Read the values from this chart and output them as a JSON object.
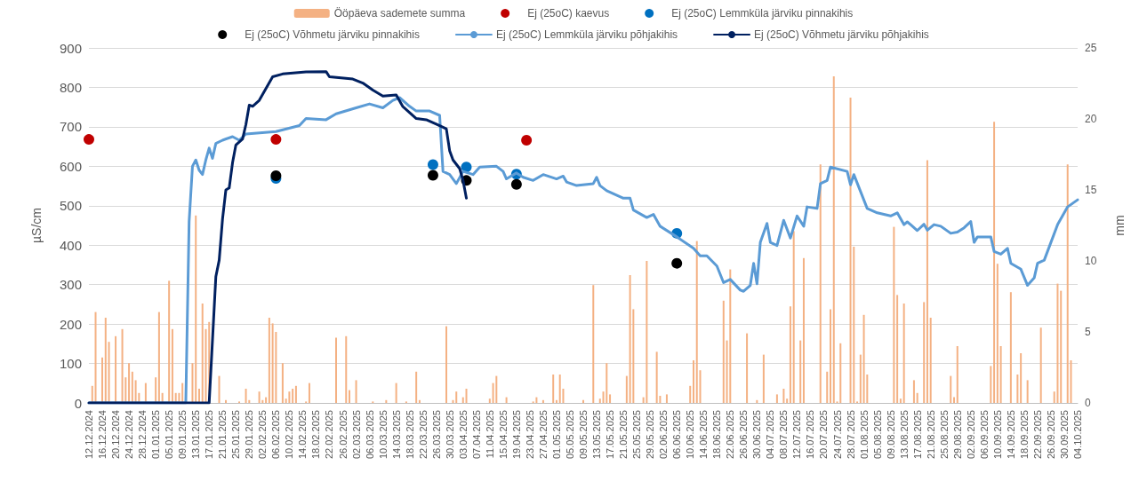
{
  "chart_data": {
    "type": "line",
    "ylabel": "µS/cm",
    "y2label": "mm",
    "xlim": [
      "2024-12-12",
      "2025-10-04"
    ],
    "ylim": [
      0,
      900
    ],
    "yticks": [
      0,
      100,
      200,
      300,
      400,
      500,
      600,
      700,
      800,
      900
    ],
    "y2lim": [
      0,
      25
    ],
    "y2ticks": [
      0,
      5,
      10,
      15,
      20,
      25
    ],
    "xticks": [
      {
        "value": "2024-12-12",
        "label": "12.12.2024"
      },
      {
        "value": "2024-12-16",
        "label": "16.12.2024"
      },
      {
        "value": "2024-12-20",
        "label": "20.12.2024"
      },
      {
        "value": "2024-12-24",
        "label": "24.12.2024"
      },
      {
        "value": "2024-12-28",
        "label": "28.12.2024"
      },
      {
        "value": "2025-01-01",
        "label": "01.01.2025"
      },
      {
        "value": "2025-01-05",
        "label": "05.01.2025"
      },
      {
        "value": "2025-01-09",
        "label": "09.01.2025"
      },
      {
        "value": "2025-01-13",
        "label": "13.01.2025"
      },
      {
        "value": "2025-01-17",
        "label": "17.01.2025"
      },
      {
        "value": "2025-01-21",
        "label": "21.01.2025"
      },
      {
        "value": "2025-01-25",
        "label": "25.01.2025"
      },
      {
        "value": "2025-01-29",
        "label": "29.01.2025"
      },
      {
        "value": "2025-02-02",
        "label": "02.02.2025"
      },
      {
        "value": "2025-02-06",
        "label": "06.02.2025"
      },
      {
        "value": "2025-02-10",
        "label": "10.02.2025"
      },
      {
        "value": "2025-02-14",
        "label": "14.02.2025"
      },
      {
        "value": "2025-02-18",
        "label": "18.02.2025"
      },
      {
        "value": "2025-02-22",
        "label": "22.02.2025"
      },
      {
        "value": "2025-02-26",
        "label": "26.02.2025"
      },
      {
        "value": "2025-03-02",
        "label": "02.03.2025"
      },
      {
        "value": "2025-03-06",
        "label": "06.03.2025"
      },
      {
        "value": "2025-03-10",
        "label": "10.03.2025"
      },
      {
        "value": "2025-03-14",
        "label": "14.03.2025"
      },
      {
        "value": "2025-03-18",
        "label": "18.03.2025"
      },
      {
        "value": "2025-03-22",
        "label": "22.03.2025"
      },
      {
        "value": "2025-03-26",
        "label": "26.03.2025"
      },
      {
        "value": "2025-03-30",
        "label": "30.03.2025"
      },
      {
        "value": "2025-04-03",
        "label": "03.04.2025"
      },
      {
        "value": "2025-04-07",
        "label": "07.04.2025"
      },
      {
        "value": "2025-04-11",
        "label": "11.04.2025"
      },
      {
        "value": "2025-04-15",
        "label": "15.04.2025"
      },
      {
        "value": "2025-04-19",
        "label": "19.04.2025"
      },
      {
        "value": "2025-04-23",
        "label": "23.04.2025"
      },
      {
        "value": "2025-04-27",
        "label": "27.04.2025"
      },
      {
        "value": "2025-05-01",
        "label": "01.05.2025"
      },
      {
        "value": "2025-05-05",
        "label": "05.05.2025"
      },
      {
        "value": "2025-05-09",
        "label": "09.05.2025"
      },
      {
        "value": "2025-05-13",
        "label": "13.05.2025"
      },
      {
        "value": "2025-05-17",
        "label": "17.05.2025"
      },
      {
        "value": "2025-05-21",
        "label": "21.05.2025"
      },
      {
        "value": "2025-05-25",
        "label": "25.05.2025"
      },
      {
        "value": "2025-05-29",
        "label": "29.05.2025"
      },
      {
        "value": "2025-06-02",
        "label": "02.06.2025"
      },
      {
        "value": "2025-06-06",
        "label": "06.06.2025"
      },
      {
        "value": "2025-06-10",
        "label": "10.06.2025"
      },
      {
        "value": "2025-06-14",
        "label": "14.06.2025"
      },
      {
        "value": "2025-06-18",
        "label": "18.06.2025"
      },
      {
        "value": "2025-06-22",
        "label": "22.06.2025"
      },
      {
        "value": "2025-06-26",
        "label": "26.06.2025"
      },
      {
        "value": "2025-06-30",
        "label": "30.06.2025"
      },
      {
        "value": "2025-07-04",
        "label": "04.07.2025"
      },
      {
        "value": "2025-07-08",
        "label": "08.07.2025"
      },
      {
        "value": "2025-07-12",
        "label": "12.07.2025"
      },
      {
        "value": "2025-07-16",
        "label": "16.07.2025"
      },
      {
        "value": "2025-07-20",
        "label": "20.07.2025"
      },
      {
        "value": "2025-07-24",
        "label": "24.07.2025"
      },
      {
        "value": "2025-07-28",
        "label": "28.07.2025"
      },
      {
        "value": "2025-08-01",
        "label": "01.08.2025"
      },
      {
        "value": "2025-08-05",
        "label": "05.08.2025"
      },
      {
        "value": "2025-08-09",
        "label": "09.08.2025"
      },
      {
        "value": "2025-08-13",
        "label": "13.08.2025"
      },
      {
        "value": "2025-08-17",
        "label": "17.08.2025"
      },
      {
        "value": "2025-08-21",
        "label": "21.08.2025"
      },
      {
        "value": "2025-08-25",
        "label": "25.08.2025"
      },
      {
        "value": "2025-08-29",
        "label": "29.08.2025"
      },
      {
        "value": "2025-09-02",
        "label": "02.09.2025"
      },
      {
        "value": "2025-09-06",
        "label": "06.09.2025"
      },
      {
        "value": "2025-09-10",
        "label": "10.09.2025"
      },
      {
        "value": "2025-09-14",
        "label": "14.09.2025"
      },
      {
        "value": "2025-09-18",
        "label": "18.09.2025"
      },
      {
        "value": "2025-09-22",
        "label": "22.09.2025"
      },
      {
        "value": "2025-09-26",
        "label": "26.09.2025"
      },
      {
        "value": "2025-09-30",
        "label": "30.09.2025"
      },
      {
        "value": "2025-10-04",
        "label": "04.10.2025"
      }
    ],
    "grid": "y",
    "legend": "top",
    "series": [
      {
        "name": "Ööpäeva sademete summa",
        "type": "bar",
        "axis": "y2",
        "color": "#f4b183",
        "x": [
          "2024-12-13",
          "2024-12-14",
          "2024-12-16",
          "2024-12-17",
          "2024-12-18",
          "2024-12-20",
          "2024-12-22",
          "2024-12-23",
          "2024-12-24",
          "2024-12-25",
          "2024-12-26",
          "2024-12-27",
          "2024-12-29",
          "2024-12-31",
          "2025-01-01",
          "2025-01-02",
          "2025-01-03",
          "2025-01-05",
          "2025-01-06",
          "2025-01-07",
          "2025-01-08",
          "2025-01-09",
          "2025-01-12",
          "2025-01-13",
          "2025-01-14",
          "2025-01-15",
          "2025-01-16",
          "2025-01-17",
          "2025-01-20",
          "2025-01-22",
          "2025-01-26",
          "2025-01-28",
          "2025-01-29",
          "2025-02-01",
          "2025-02-02",
          "2025-02-03",
          "2025-02-04",
          "2025-02-05",
          "2025-02-06",
          "2025-02-08",
          "2025-02-09",
          "2025-02-10",
          "2025-02-11",
          "2025-02-12",
          "2025-02-15",
          "2025-02-16",
          "2025-02-24",
          "2025-02-27",
          "2025-02-28",
          "2025-03-02",
          "2025-03-07",
          "2025-03-11",
          "2025-03-14",
          "2025-03-17",
          "2025-03-20",
          "2025-03-21",
          "2025-03-29",
          "2025-03-31",
          "2025-04-01",
          "2025-04-03",
          "2025-04-04",
          "2025-04-11",
          "2025-04-12",
          "2025-04-13",
          "2025-04-16",
          "2025-04-24",
          "2025-04-25",
          "2025-04-27",
          "2025-04-30",
          "2025-05-01",
          "2025-05-02",
          "2025-05-03",
          "2025-05-09",
          "2025-05-12",
          "2025-05-14",
          "2025-05-15",
          "2025-05-16",
          "2025-05-17",
          "2025-05-22",
          "2025-05-23",
          "2025-05-24",
          "2025-05-27",
          "2025-05-28",
          "2025-05-31",
          "2025-06-01",
          "2025-06-03",
          "2025-06-10",
          "2025-06-11",
          "2025-06-12",
          "2025-06-13",
          "2025-06-20",
          "2025-06-21",
          "2025-06-22",
          "2025-06-27",
          "2025-06-30",
          "2025-07-02",
          "2025-07-06",
          "2025-07-08",
          "2025-07-09",
          "2025-07-10",
          "2025-07-11",
          "2025-07-13",
          "2025-07-14",
          "2025-07-19",
          "2025-07-21",
          "2025-07-22",
          "2025-07-23",
          "2025-07-24",
          "2025-07-25",
          "2025-07-28",
          "2025-07-29",
          "2025-07-30",
          "2025-07-31",
          "2025-08-01",
          "2025-08-02",
          "2025-08-10",
          "2025-08-11",
          "2025-08-12",
          "2025-08-13",
          "2025-08-16",
          "2025-08-17",
          "2025-08-19",
          "2025-08-20",
          "2025-08-21",
          "2025-08-27",
          "2025-08-28",
          "2025-08-29",
          "2025-09-08",
          "2025-09-09",
          "2025-09-10",
          "2025-09-11",
          "2025-09-14",
          "2025-09-16",
          "2025-09-17",
          "2025-09-19",
          "2025-09-23",
          "2025-09-27",
          "2025-09-28",
          "2025-09-29",
          "2025-10-01",
          "2025-10-02"
        ],
        "values": [
          1.2,
          6.4,
          3.2,
          6.0,
          4.3,
          4.7,
          5.2,
          1.8,
          2.8,
          2.2,
          1.6,
          0.7,
          1.4,
          null,
          1.8,
          6.4,
          0.7,
          8.6,
          5.2,
          0.7,
          0.7,
          1.4,
          2.8,
          13.2,
          1.0,
          7.0,
          5.2,
          5.7,
          1.9,
          0.2,
          0.1,
          1.0,
          0.2,
          0.8,
          0.2,
          0.4,
          6.0,
          5.6,
          5.0,
          2.8,
          0.3,
          0.8,
          1.0,
          1.2,
          0.1,
          1.4,
          4.6,
          4.7,
          0.9,
          1.6,
          0.1,
          0.2,
          1.4,
          0.1,
          2.2,
          0.2,
          5.4,
          0.2,
          0.8,
          0.4,
          1.0,
          0.3,
          1.4,
          1.9,
          0.4,
          0.1,
          0.4,
          0.2,
          2.0,
          0.2,
          2.0,
          1.0,
          0.2,
          8.3,
          0.3,
          0.8,
          2.8,
          0.6,
          1.9,
          9.0,
          6.6,
          0.4,
          10.0,
          3.6,
          0.5,
          0.6,
          1.2,
          3.0,
          11.4,
          2.3,
          7.2,
          4.4,
          9.4,
          4.9,
          0.2,
          3.4,
          0.6,
          1.0,
          0.3,
          6.8,
          12.1,
          4.4,
          10.2,
          16.8,
          2.2,
          6.6,
          23.0,
          0.1,
          4.2,
          21.5,
          11.0,
          0.1,
          3.4,
          6.2,
          2.0,
          12.4,
          7.6,
          0.3,
          7.0,
          1.6,
          0.7,
          7.1,
          17.1,
          6.0,
          1.9,
          0.4,
          4.0,
          2.6,
          19.8,
          9.8,
          4.0,
          7.8,
          2.0,
          3.5,
          1.6,
          5.3,
          0.8,
          8.4,
          7.9,
          16.8,
          3.0
        ]
      },
      {
        "name": "Ej (25oC) kaevus",
        "type": "scatter",
        "marker": "circle",
        "color": "#c00000",
        "x": [
          "2024-12-12",
          "2025-02-06",
          "2025-04-22"
        ],
        "values": [
          668,
          668,
          666
        ]
      },
      {
        "name": "Ej (25oC) Lemmküla järviku pinnakihis",
        "type": "scatter",
        "marker": "circle",
        "color": "#0070c0",
        "x": [
          "2025-02-06",
          "2025-03-25",
          "2025-04-04",
          "2025-04-19",
          "2025-06-06"
        ],
        "values": [
          569,
          604,
          598,
          580,
          430
        ]
      },
      {
        "name": "Ej (25oC) Võhmetu järviku pinnakihis",
        "type": "scatter",
        "marker": "circle",
        "color": "#000000",
        "x": [
          "2025-02-06",
          "2025-03-25",
          "2025-04-04",
          "2025-04-19",
          "2025-06-06"
        ],
        "values": [
          576,
          577,
          564,
          554,
          354
        ]
      },
      {
        "name": "Ej (25oC) Lemmküla järviku põhjakihis",
        "marker": "none",
        "line_style": "solid",
        "color": "#5b9bd5",
        "x": [
          "2024-12-12",
          "2025-01-10",
          "2025-01-11",
          "2025-01-12",
          "2025-01-13",
          "2025-01-14",
          "2025-01-15",
          "2025-01-16",
          "2025-01-17",
          "2025-01-18",
          "2025-01-19",
          "2025-01-21",
          "2025-01-24",
          "2025-01-26",
          "2025-01-28",
          "2025-02-06",
          "2025-02-13",
          "2025-02-15",
          "2025-02-21",
          "2025-02-24",
          "2025-03-02",
          "2025-03-06",
          "2025-03-10",
          "2025-03-13",
          "2025-03-15",
          "2025-03-18",
          "2025-03-20",
          "2025-03-24",
          "2025-03-27",
          "2025-03-28",
          "2025-03-30",
          "2025-04-01",
          "2025-04-03",
          "2025-04-06",
          "2025-04-08",
          "2025-04-13",
          "2025-04-15",
          "2025-04-16",
          "2025-04-19",
          "2025-04-21",
          "2025-04-24",
          "2025-04-27",
          "2025-05-01",
          "2025-05-03",
          "2025-05-04",
          "2025-05-07",
          "2025-05-12",
          "2025-05-13",
          "2025-05-14",
          "2025-05-16",
          "2025-05-21",
          "2025-05-23",
          "2025-05-24",
          "2025-05-28",
          "2025-05-30",
          "2025-06-01",
          "2025-06-06",
          "2025-06-11",
          "2025-06-13",
          "2025-06-15",
          "2025-06-18",
          "2025-06-20",
          "2025-06-22",
          "2025-06-25",
          "2025-06-26",
          "2025-06-28",
          "2025-06-29",
          "2025-06-30",
          "2025-07-01",
          "2025-07-03",
          "2025-07-04",
          "2025-07-06",
          "2025-07-08",
          "2025-07-10",
          "2025-07-12",
          "2025-07-14",
          "2025-07-15",
          "2025-07-18",
          "2025-07-19",
          "2025-07-21",
          "2025-07-22",
          "2025-07-27",
          "2025-07-28",
          "2025-07-29",
          "2025-08-02",
          "2025-08-05",
          "2025-08-09",
          "2025-08-11",
          "2025-08-13",
          "2025-08-14",
          "2025-08-15",
          "2025-08-17",
          "2025-08-19",
          "2025-08-20",
          "2025-08-22",
          "2025-08-24",
          "2025-08-27",
          "2025-08-29",
          "2025-08-31",
          "2025-09-02",
          "2025-09-03",
          "2025-09-04",
          "2025-09-08",
          "2025-09-09",
          "2025-09-11",
          "2025-09-13",
          "2025-09-14",
          "2025-09-17",
          "2025-09-19",
          "2025-09-21",
          "2025-09-22",
          "2025-09-24",
          "2025-09-26",
          "2025-09-28",
          "2025-10-01",
          "2025-10-04"
        ],
        "values": [
          0,
          0,
          460,
          600,
          616,
          590,
          579,
          616,
          646,
          620,
          658,
          666,
          675,
          666,
          682,
          688,
          703,
          721,
          718,
          733,
          748,
          758,
          748,
          767,
          774,
          752,
          740,
          740,
          729,
          587,
          579,
          556,
          587,
          579,
          598,
          600,
          587,
          568,
          583,
          572,
          564,
          579,
          568,
          575,
          560,
          551,
          556,
          572,
          551,
          538,
          519,
          519,
          489,
          470,
          478,
          448,
          421,
          392,
          373,
          373,
          347,
          305,
          313,
          286,
          283,
          298,
          354,
          302,
          407,
          455,
          407,
          399,
          463,
          418,
          474,
          448,
          497,
          493,
          556,
          564,
          598,
          587,
          553,
          579,
          493,
          482,
          474,
          482,
          452,
          459,
          452,
          437,
          453,
          438,
          452,
          448,
          430,
          433,
          444,
          460,
          407,
          421,
          421,
          384,
          377,
          392,
          354,
          339,
          298,
          317,
          354,
          362,
          407,
          452,
          497,
          515
        ]
      },
      {
        "name": "Ej (25oC) Võhmetu järviku põhjakihis",
        "marker": "none",
        "line_style": "solid",
        "color": "#002060",
        "x": [
          "2024-12-12",
          "2025-01-17",
          "2025-01-18",
          "2025-01-19",
          "2025-01-20",
          "2025-01-21",
          "2025-01-22",
          "2025-01-23",
          "2025-01-24",
          "2025-01-25",
          "2025-01-27",
          "2025-01-28",
          "2025-01-29",
          "2025-01-30",
          "2025-02-01",
          "2025-02-05",
          "2025-02-08",
          "2025-02-15",
          "2025-02-21",
          "2025-02-22",
          "2025-03-01",
          "2025-03-04",
          "2025-03-07",
          "2025-03-10",
          "2025-03-14",
          "2025-03-16",
          "2025-03-18",
          "2025-03-20",
          "2025-03-23",
          "2025-03-26",
          "2025-03-29",
          "2025-03-30",
          "2025-03-31",
          "2025-04-02",
          "2025-04-03",
          "2025-04-04"
        ],
        "values": [
          0,
          0,
          160,
          320,
          362,
          466,
          540,
          545,
          609,
          654,
          669,
          706,
          755,
          752,
          767,
          827,
          834,
          839,
          840,
          827,
          821,
          811,
          793,
          778,
          781,
          751,
          736,
          721,
          718,
          707,
          695,
          639,
          616,
          594,
          564,
          519
        ]
      }
    ]
  }
}
